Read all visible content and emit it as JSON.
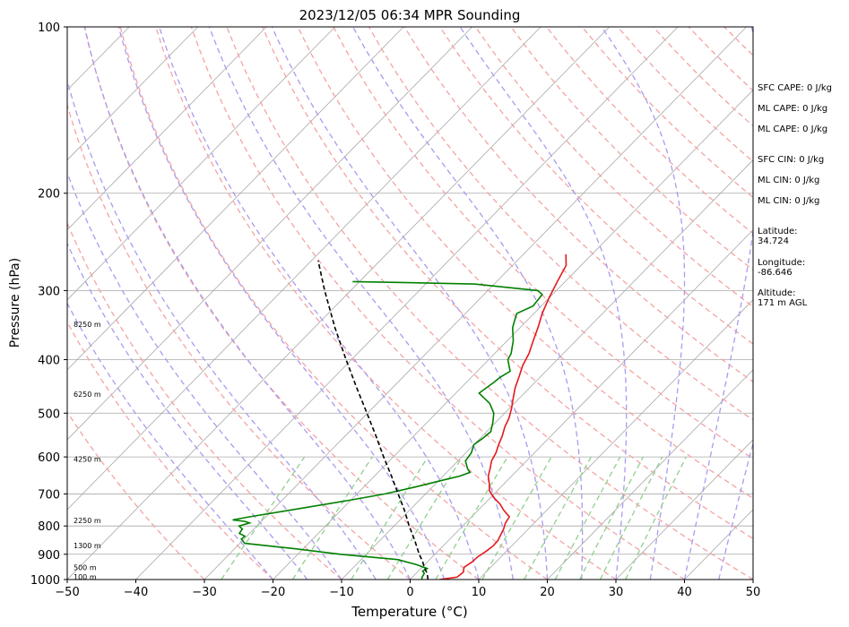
{
  "chart_data": {
    "type": "line",
    "title": "2023/12/05 06:34 MPR Sounding",
    "xlabel": "Temperature (°C)",
    "ylabel": "Pressure (hPa)",
    "xlim": [
      -50,
      50
    ],
    "ylim": [
      1000,
      100
    ],
    "y_scale": "log",
    "grid": true,
    "x_ticks": [
      "−50",
      "−40",
      "−30",
      "−20",
      "−10",
      "0",
      "10",
      "20",
      "30",
      "40",
      "50"
    ],
    "x_tick_values": [
      -50,
      -40,
      -30,
      -20,
      -10,
      0,
      10,
      20,
      30,
      40,
      50
    ],
    "y_ticks": [
      "1000",
      "900",
      "800",
      "700",
      "600",
      "500",
      "400",
      "300",
      "200",
      "100"
    ],
    "y_tick_values": [
      1000,
      900,
      800,
      700,
      600,
      500,
      400,
      300,
      200,
      100
    ],
    "altitude_labels": [
      {
        "text": "100 m",
        "p": 988
      },
      {
        "text": "500 m",
        "p": 950
      },
      {
        "text": "1300 m",
        "p": 868
      },
      {
        "text": "2250 m",
        "p": 782
      },
      {
        "text": "4250 m",
        "p": 605
      },
      {
        "text": "6250 m",
        "p": 462
      },
      {
        "text": "8250 m",
        "p": 345
      }
    ],
    "series": [
      {
        "name": "Temperature",
        "color": "#e41a1c",
        "points": [
          [
            1000,
            4.3
          ],
          [
            990,
            6.5
          ],
          [
            970,
            6.7
          ],
          [
            950,
            6.1
          ],
          [
            930,
            6.5
          ],
          [
            910,
            6.6
          ],
          [
            890,
            7.0
          ],
          [
            870,
            7.3
          ],
          [
            850,
            7.2
          ],
          [
            830,
            6.8
          ],
          [
            810,
            6.4
          ],
          [
            790,
            5.8
          ],
          [
            770,
            5.5
          ],
          [
            750,
            3.8
          ],
          [
            730,
            2.3
          ],
          [
            710,
            0.4
          ],
          [
            690,
            -1.2
          ],
          [
            670,
            -2.2
          ],
          [
            650,
            -3.4
          ],
          [
            630,
            -4.2
          ],
          [
            610,
            -5.1
          ],
          [
            590,
            -5.6
          ],
          [
            570,
            -6.4
          ],
          [
            550,
            -7.1
          ],
          [
            530,
            -8.0
          ],
          [
            510,
            -8.7
          ],
          [
            490,
            -9.7
          ],
          [
            470,
            -10.9
          ],
          [
            450,
            -12.1
          ],
          [
            430,
            -13.1
          ],
          [
            410,
            -14.2
          ],
          [
            390,
            -15.0
          ],
          [
            370,
            -16.2
          ],
          [
            350,
            -17.4
          ],
          [
            330,
            -18.8
          ],
          [
            310,
            -20.0
          ],
          [
            290,
            -21.1
          ],
          [
            270,
            -22.2
          ],
          [
            258,
            -23.8
          ]
        ]
      },
      {
        "name": "Dewpoint",
        "color": "#008000",
        "points": [
          [
            1000,
            1.7
          ],
          [
            990,
            1.4
          ],
          [
            975,
            1.2
          ],
          [
            965,
            0.6
          ],
          [
            955,
            0.9
          ],
          [
            940,
            -1.2
          ],
          [
            920,
            -4.7
          ],
          [
            900,
            -13.8
          ],
          [
            880,
            -21.1
          ],
          [
            860,
            -29.3
          ],
          [
            845,
            -30.4
          ],
          [
            835,
            -30.3
          ],
          [
            825,
            -31.5
          ],
          [
            810,
            -31.7
          ],
          [
            800,
            -32.6
          ],
          [
            790,
            -31.5
          ],
          [
            785,
            -32.4
          ],
          [
            780,
            -34.4
          ],
          [
            770,
            -32.4
          ],
          [
            750,
            -27.7
          ],
          [
            720,
            -20.5
          ],
          [
            700,
            -15.9
          ],
          [
            680,
            -12.5
          ],
          [
            660,
            -9.3
          ],
          [
            650,
            -7.6
          ],
          [
            640,
            -6.6
          ],
          [
            630,
            -7.5
          ],
          [
            610,
            -8.9
          ],
          [
            590,
            -9.2
          ],
          [
            570,
            -10.0
          ],
          [
            555,
            -9.6
          ],
          [
            540,
            -9.4
          ],
          [
            520,
            -10.4
          ],
          [
            500,
            -11.6
          ],
          [
            480,
            -13.6
          ],
          [
            460,
            -16.6
          ],
          [
            440,
            -16.0
          ],
          [
            430,
            -15.8
          ],
          [
            420,
            -15.2
          ],
          [
            400,
            -17.2
          ],
          [
            390,
            -17.6
          ],
          [
            370,
            -19.1
          ],
          [
            350,
            -21.1
          ],
          [
            340,
            -21.8
          ],
          [
            330,
            -22.5
          ],
          [
            320,
            -21.2
          ],
          [
            305,
            -21.5
          ],
          [
            300,
            -22.7
          ],
          [
            292,
            -32.9
          ],
          [
            290,
            -44.3
          ],
          [
            289,
            -51.0
          ]
        ]
      },
      {
        "name": "Parcel",
        "color": "#000000",
        "dashed": true,
        "points": [
          [
            1000,
            2.6
          ],
          [
            975,
            1.6
          ],
          [
            950,
            0.3
          ],
          [
            925,
            -0.9
          ],
          [
            900,
            -2.3
          ],
          [
            850,
            -4.9
          ],
          [
            800,
            -7.8
          ],
          [
            750,
            -10.7
          ],
          [
            700,
            -14.0
          ],
          [
            650,
            -17.5
          ],
          [
            600,
            -21.4
          ],
          [
            550,
            -25.5
          ],
          [
            500,
            -30.1
          ],
          [
            450,
            -35.2
          ],
          [
            400,
            -40.8
          ],
          [
            350,
            -47.0
          ],
          [
            300,
            -53.8
          ],
          [
            265,
            -59.0
          ]
        ]
      }
    ],
    "indices": [
      {
        "label": "SFC CAPE",
        "text": "SFC CAPE: 0 J/kg"
      },
      {
        "label": "ML CAPE",
        "text": "ML CAPE: 0 J/kg"
      },
      {
        "label": "ML CAPE",
        "text": "ML CAPE: 0 J/kg"
      },
      {
        "label": "SFC CIN",
        "text": "SFC CIN: 0 J/kg"
      },
      {
        "label": "ML CIN",
        "text": "ML CIN: 0 J/kg"
      },
      {
        "label": "ML CIN",
        "text": "ML CIN: 0 J/kg"
      }
    ],
    "location": [
      {
        "label": "Latitude",
        "text": "Latitude:\n34.724"
      },
      {
        "label": "Longitude",
        "text": "Longitude:\n-86.646"
      },
      {
        "label": "Altitude",
        "text": "Altitude:\n171 m AGL"
      }
    ],
    "colors": {
      "isotherm": "#a8a8a8",
      "dry_adiabat": "#f4a3a3",
      "moist_adiabat": "#a99bee",
      "mixing_ratio": "#8fcf8f",
      "grid": "#a8a8a8"
    }
  }
}
